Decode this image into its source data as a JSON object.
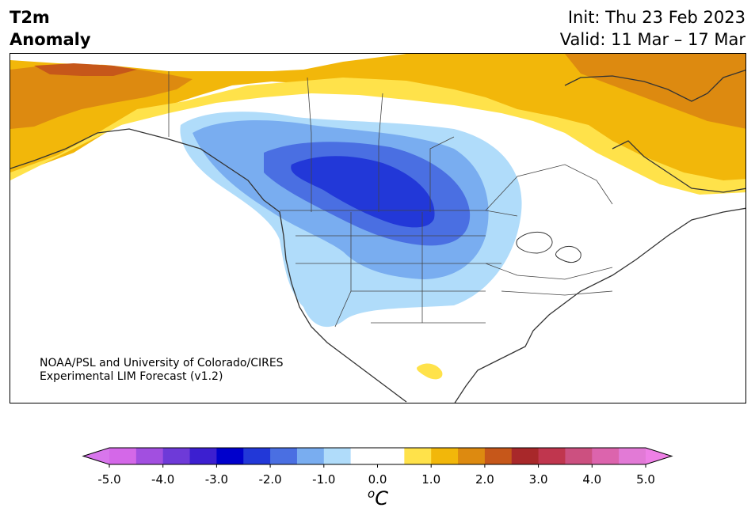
{
  "title": {
    "variable": "T2m",
    "subtitle": "Anomaly"
  },
  "forecast": {
    "init": "Init: Thu 23 Feb 2023",
    "valid": "Valid: 11 Mar – 17 Mar"
  },
  "credit": {
    "line1": "NOAA/PSL and University of Colorado/CIRES",
    "line2": "Experimental LIM Forecast (v1.2)"
  },
  "colorbar": {
    "unit_main": "C",
    "unit_sup": "o",
    "ticks": [
      "-5.0",
      "-4.0",
      "-3.0",
      "-2.0",
      "-1.0",
      "0.0",
      "1.0",
      "2.0",
      "3.0",
      "4.0",
      "5.0"
    ],
    "colors": [
      "#d468e8",
      "#a24fe0",
      "#6e3ad8",
      "#3c1fd0",
      "#0000cc",
      "#2238d8",
      "#4a6fe2",
      "#79adf0",
      "#b0dcfa",
      "#ffffff",
      "#ffffff",
      "#ffe24a",
      "#f2b70a",
      "#dd8a10",
      "#c6571a",
      "#a8282a",
      "#c0364e",
      "#cc5080",
      "#dc64ad",
      "#e27ad6"
    ],
    "under_color": "#d876ec",
    "over_color": "#ee80e6"
  },
  "map_colors": {
    "warm_light": "#ffe24a",
    "warm_mid": "#f2b70a",
    "warm_deep": "#dd8a10",
    "warm_hot": "#c6571a",
    "cool_light": "#b0dcfa",
    "cool_mid": "#79adf0",
    "cool_deep": "#4a6fe2",
    "cool_core": "#2238d8",
    "coast": "#333333"
  }
}
